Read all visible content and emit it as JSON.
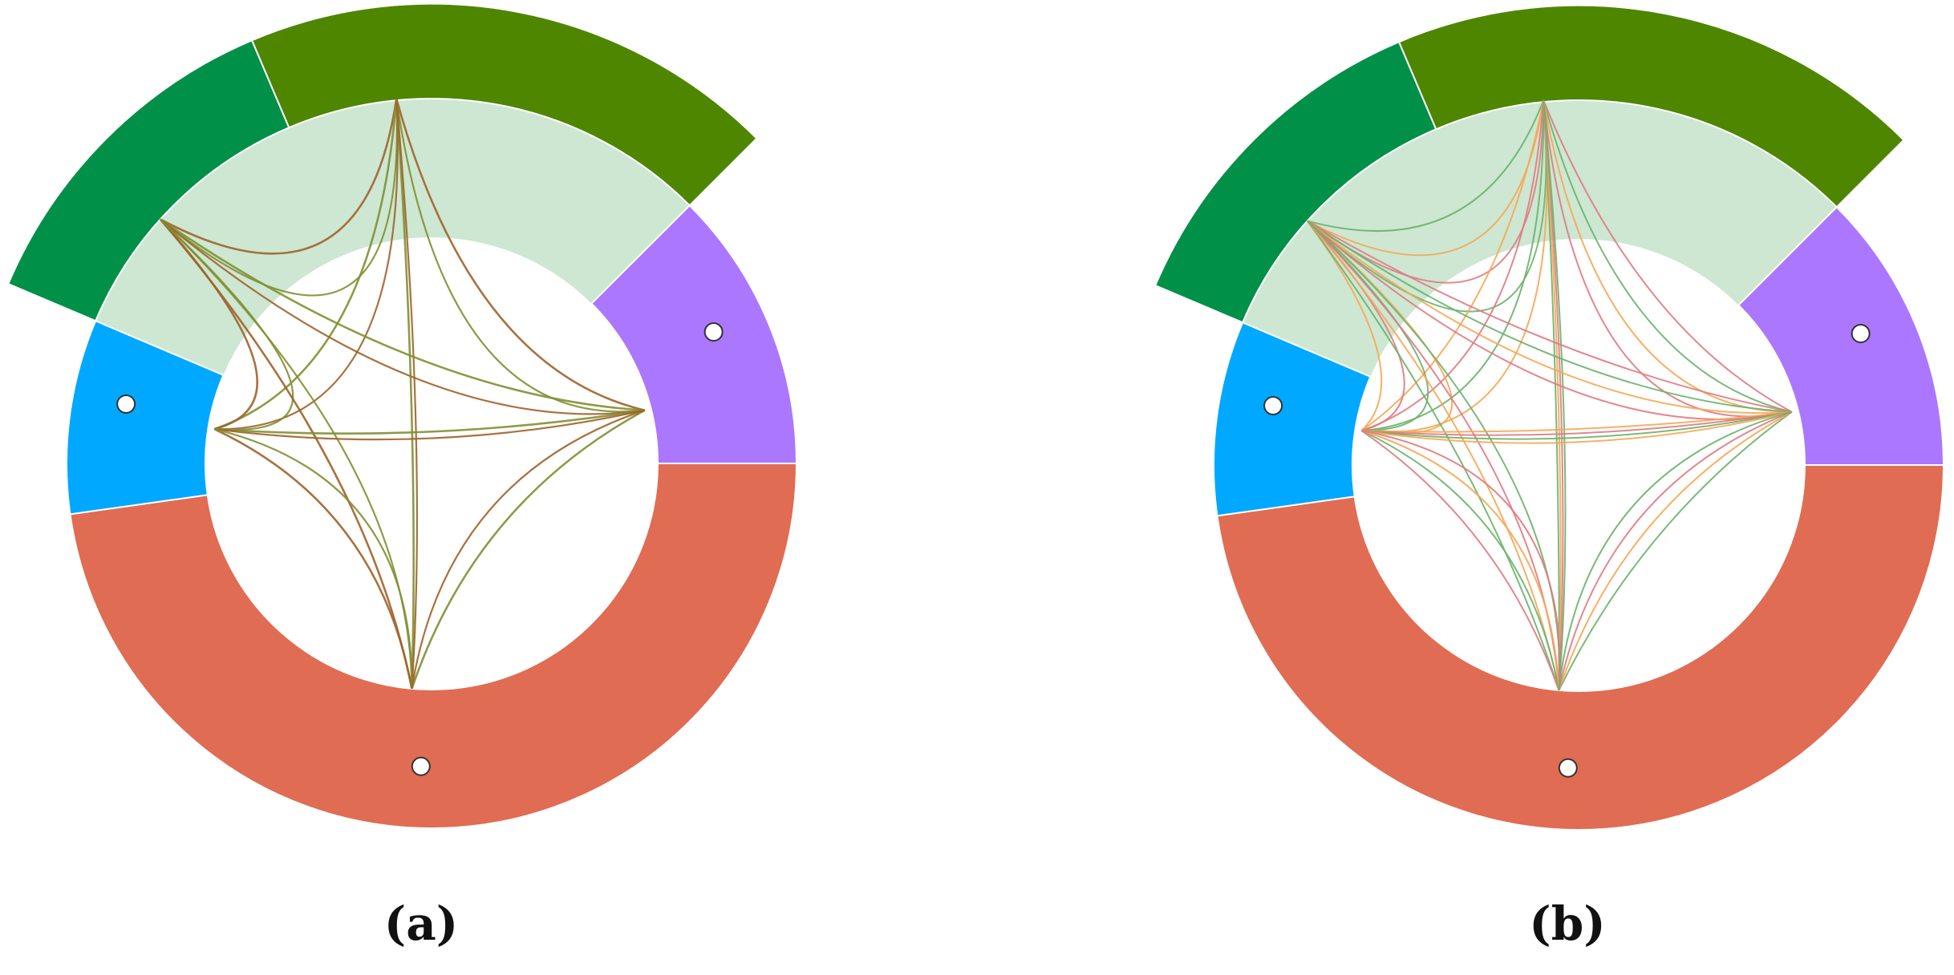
{
  "colors": {
    "red_segment": "#E06C53",
    "purple_segment": "#AB77FF",
    "blue_segment": "#00A8FF",
    "green_segment": "#009048",
    "olive_segment": "#4E8600",
    "highlight_band": "#CDE7D2",
    "background": "#FFFFFF",
    "edge_brown": "#A0632A",
    "edge_olive": "#809032",
    "edge_green": "#6AB26A",
    "edge_orange": "#F7A654",
    "edge_pink": "#E07A82"
  },
  "panels": [
    {
      "id": "a",
      "label": "(a)"
    },
    {
      "id": "b",
      "label": "(b)"
    }
  ]
}
